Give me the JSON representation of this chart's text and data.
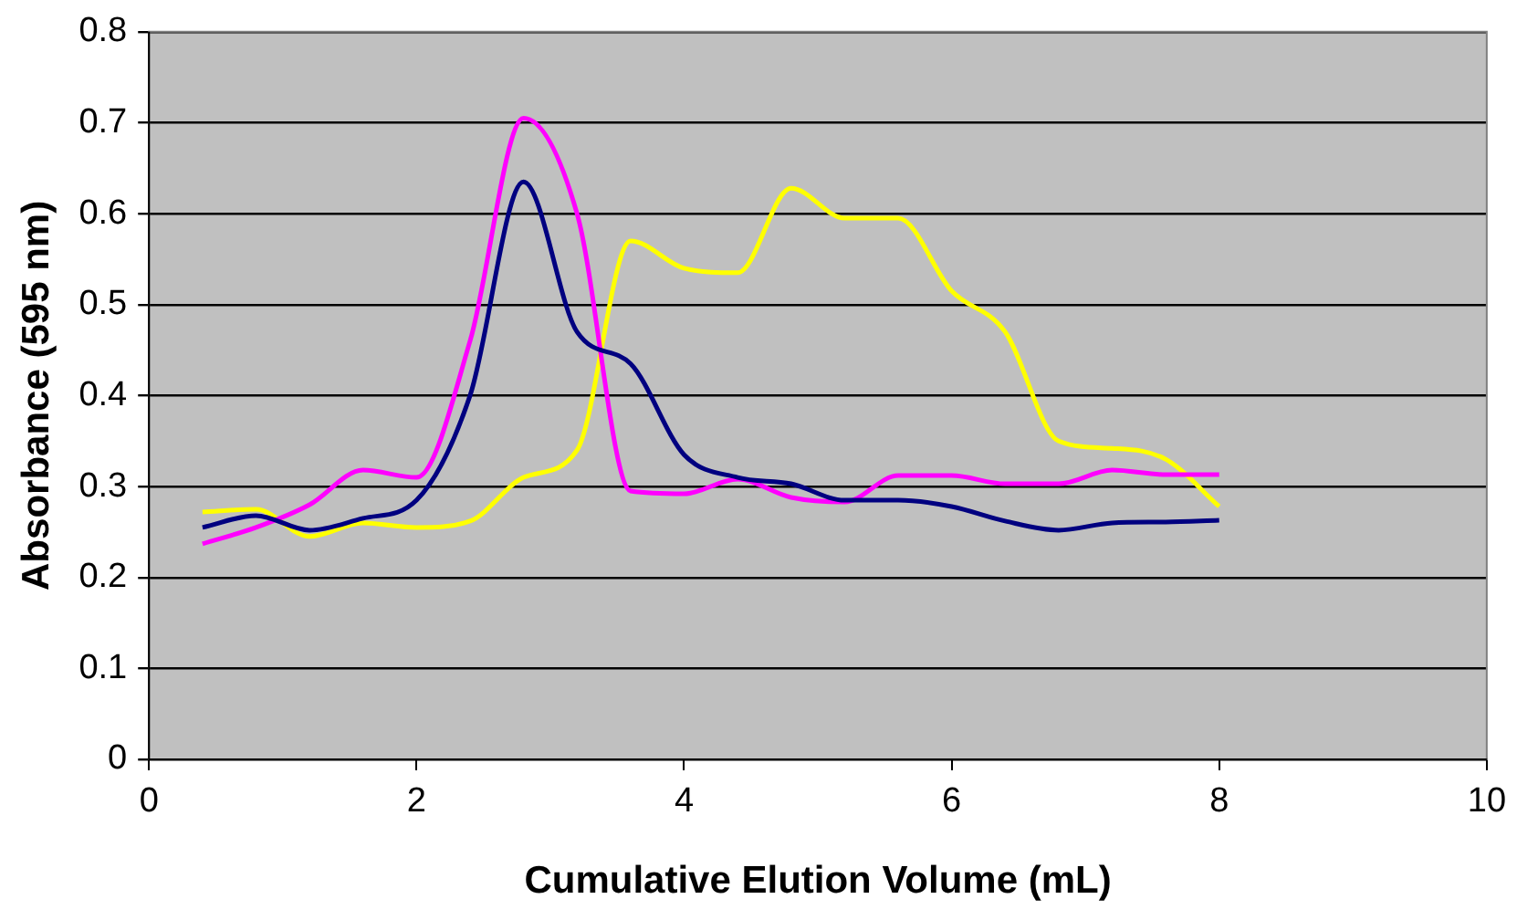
{
  "chart_data": {
    "type": "line",
    "xlabel": "Cumulative Elution Volume (mL)",
    "ylabel": "Absorbance (595 nm)",
    "x": [
      0.4,
      0.8,
      1.2,
      1.6,
      2.0,
      2.4,
      2.8,
      3.2,
      3.6,
      4.0,
      4.4,
      4.8,
      5.2,
      5.6,
      6.0,
      6.4,
      6.8,
      7.2,
      7.6,
      8.0
    ],
    "series": [
      {
        "color": "#000080",
        "values": [
          0.255,
          0.268,
          0.252,
          0.265,
          0.285,
          0.4,
          0.635,
          0.47,
          0.435,
          0.335,
          0.31,
          0.303,
          0.285,
          0.285,
          0.278,
          0.262,
          0.252,
          0.26,
          0.261,
          0.263
        ]
      },
      {
        "color": "#ff00ff",
        "values": [
          0.237,
          0.255,
          0.28,
          0.318,
          0.31,
          0.46,
          0.705,
          0.6,
          0.295,
          0.292,
          0.308,
          0.288,
          0.283,
          0.312,
          0.312,
          0.303,
          0.303,
          0.318,
          0.313,
          0.313
        ]
      },
      {
        "color": "#ffff00",
        "values": [
          0.272,
          0.275,
          0.245,
          0.26,
          0.255,
          0.262,
          0.31,
          0.34,
          0.57,
          0.54,
          0.535,
          0.628,
          0.595,
          0.595,
          0.515,
          0.47,
          0.35,
          0.342,
          0.33,
          0.278
        ]
      }
    ],
    "xlim": [
      0,
      10
    ],
    "xticks": [
      0,
      2,
      4,
      6,
      8,
      10
    ],
    "ylim": [
      0,
      0.8
    ],
    "yticks": [
      0,
      0.1,
      0.2,
      0.3,
      0.4,
      0.5,
      0.6,
      0.7,
      0.8
    ],
    "grid": "y",
    "legend": false,
    "marker": "none",
    "line_style": "solid"
  }
}
